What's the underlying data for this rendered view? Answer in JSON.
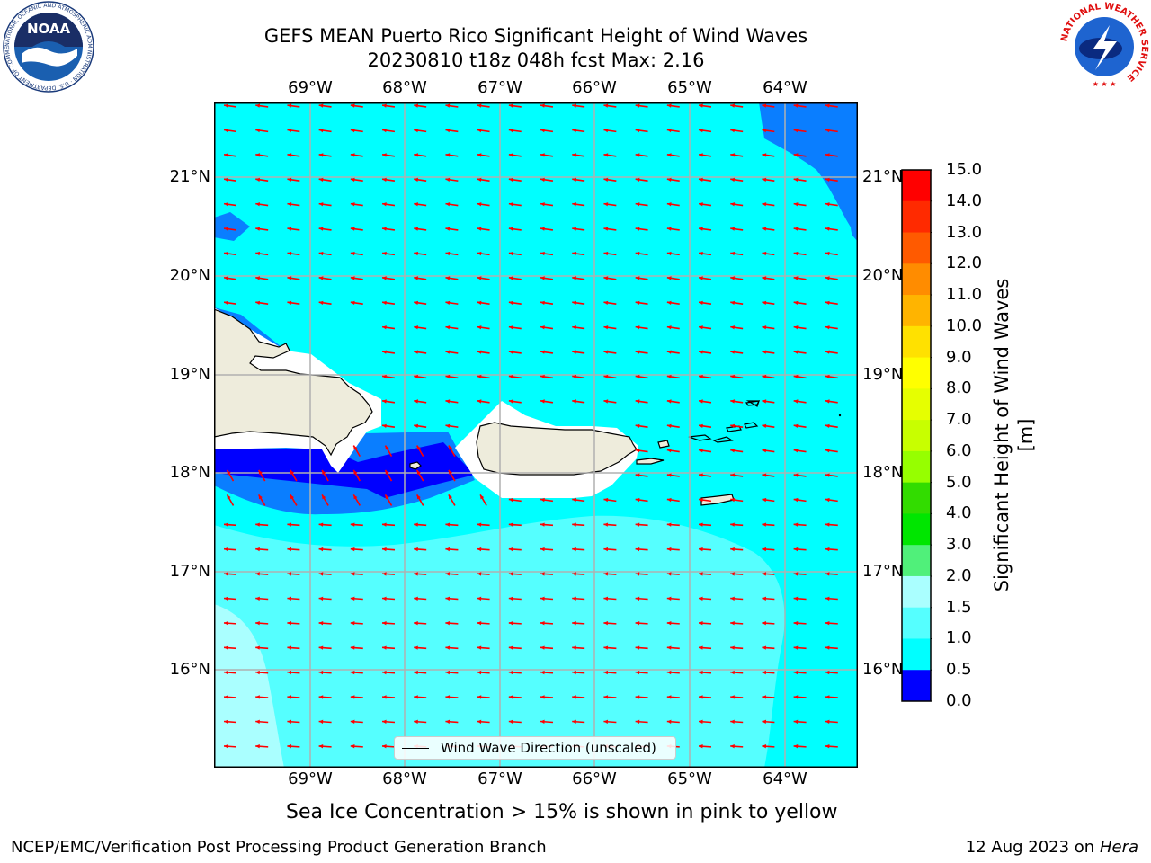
{
  "title": {
    "line1": "GEFS MEAN Puerto Rico Significant Height of Wind Waves",
    "line2": "20230810 t18z 048h fcst   Max: 2.16"
  },
  "map": {
    "lon_ticks": [
      "69°W",
      "68°W",
      "67°W",
      "66°W",
      "65°W",
      "64°W"
    ],
    "lat_ticks": [
      "21°N",
      "20°N",
      "19°N",
      "18°N",
      "17°N",
      "16°N"
    ],
    "arrow_color": "#ff0000",
    "land_color": "#eeecdc",
    "contour_fills": {
      "0.0-0.5": "#0000ff",
      "0.5-1.0": "#0a7eff",
      "1.0-1.5": "#00ffff",
      "1.5-2.0": "#55ffff",
      "2.0-3.0": "#aaffff"
    }
  },
  "colorbar": {
    "label": "Significant Height of Wind Waves [m]",
    "ticks": [
      "15.0",
      "14.0",
      "13.0",
      "12.0",
      "11.0",
      "10.0",
      "9.0",
      "8.0",
      "7.0",
      "6.0",
      "5.0",
      "4.0",
      "3.0",
      "2.0",
      "1.5",
      "1.0",
      "0.5",
      "0.0"
    ],
    "colors": [
      "#ff0000",
      "#ff2a00",
      "#ff5a00",
      "#ff8c00",
      "#ffb400",
      "#ffe100",
      "#ffff00",
      "#e6ff00",
      "#c8ff00",
      "#96ff00",
      "#32dc00",
      "#00e600",
      "#50f07a",
      "#aaffff",
      "#55ffff",
      "#00ffff",
      "#0a7eff",
      "#0000ff"
    ]
  },
  "legend": {
    "label": "Wind Wave Direction (unscaled)"
  },
  "footnote": "Sea Ice Concentration > 15% is shown in pink to yellow",
  "credits": {
    "left": "NCEP/EMC/Verification Post Processing Product Generation Branch",
    "date": "12 Aug 2023 on",
    "machine": "Hera"
  },
  "logos": {
    "noaa_text": "NOAA",
    "noaa_ring": "NATIONAL OCEANIC AND ATMOSPHERIC ADMINISTRATION · U.S. DEPARTMENT OF COMMERCE",
    "nws_ring": "NATIONAL WEATHER SERVICE"
  }
}
